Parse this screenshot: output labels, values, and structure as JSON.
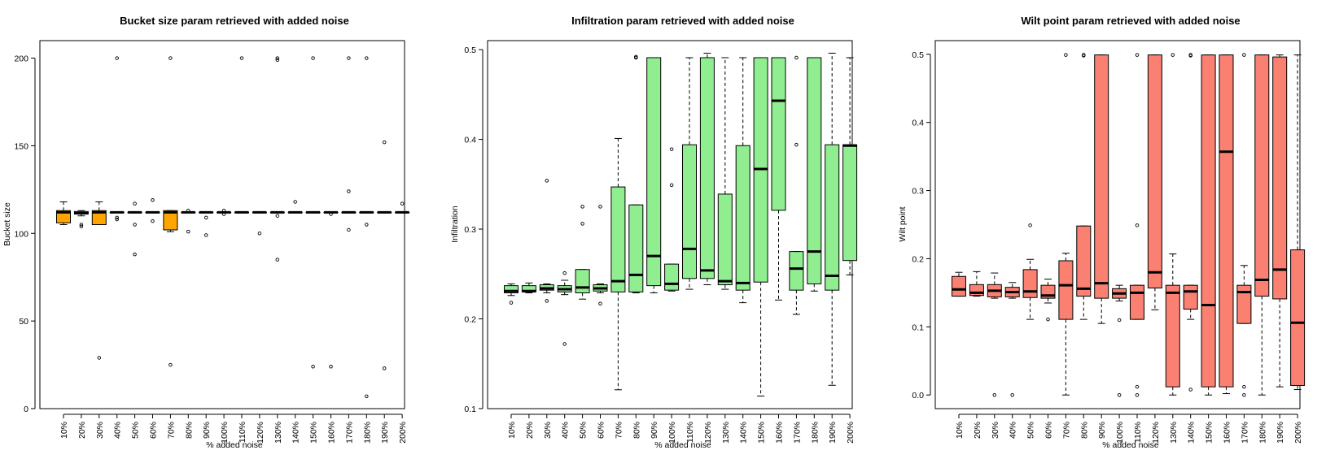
{
  "chart_data": [
    {
      "type": "boxplot",
      "title": "Bucket size param retrieved with added noise",
      "xlabel": "% added noise",
      "ylabel": "Bucket size",
      "ylim": [
        0,
        210
      ],
      "yticks": [
        0,
        50,
        100,
        150,
        200
      ],
      "box_color": "#FFA500",
      "categories": [
        "10%",
        "20%",
        "30%",
        "40%",
        "50%",
        "60%",
        "70%",
        "80%",
        "90%",
        "100%",
        "110%",
        "120%",
        "130%",
        "140%",
        "150%",
        "160%",
        "170%",
        "180%",
        "190%",
        "200%"
      ],
      "boxes": [
        {
          "whisker_low": 105,
          "q1": 106,
          "median": 112,
          "q3": 113,
          "whisker_high": 118,
          "outliers": []
        },
        {
          "whisker_low": 110,
          "q1": 111,
          "median": 111.5,
          "q3": 112.5,
          "whisker_high": 113,
          "outliers": [
            104,
            105
          ]
        },
        {
          "whisker_low": 105,
          "q1": 105,
          "median": 112,
          "q3": 113,
          "whisker_high": 118,
          "outliers": [
            29
          ]
        },
        {
          "whisker_low": 112,
          "q1": 112,
          "median": 112,
          "q3": 112,
          "whisker_high": 112,
          "outliers": [
            200,
            108,
            109
          ]
        },
        {
          "whisker_low": 112,
          "q1": 112,
          "median": 112,
          "q3": 112,
          "whisker_high": 112,
          "outliers": [
            117,
            105,
            88
          ]
        },
        {
          "whisker_low": 112,
          "q1": 112,
          "median": 112,
          "q3": 112,
          "whisker_high": 112,
          "outliers": [
            119,
            107
          ]
        },
        {
          "whisker_low": 101,
          "q1": 102,
          "median": 112,
          "q3": 113,
          "whisker_high": 113,
          "outliers": [
            200,
            25
          ]
        },
        {
          "whisker_low": 112,
          "q1": 112,
          "median": 112,
          "q3": 112,
          "whisker_high": 112,
          "outliers": [
            113,
            101
          ]
        },
        {
          "whisker_low": 112,
          "q1": 112,
          "median": 112,
          "q3": 112,
          "whisker_high": 112,
          "outliers": [
            109,
            99
          ]
        },
        {
          "whisker_low": 112,
          "q1": 112,
          "median": 112,
          "q3": 112,
          "whisker_high": 112,
          "outliers": [
            113,
            111
          ]
        },
        {
          "whisker_low": 112,
          "q1": 112,
          "median": 112,
          "q3": 112,
          "whisker_high": 112,
          "outliers": [
            200
          ]
        },
        {
          "whisker_low": 112,
          "q1": 112,
          "median": 112,
          "q3": 112,
          "whisker_high": 112,
          "outliers": [
            100
          ]
        },
        {
          "whisker_low": 112,
          "q1": 112,
          "median": 112,
          "q3": 112,
          "whisker_high": 112,
          "outliers": [
            200,
            199,
            110,
            85
          ]
        },
        {
          "whisker_low": 112,
          "q1": 112,
          "median": 112,
          "q3": 112,
          "whisker_high": 112,
          "outliers": [
            118
          ]
        },
        {
          "whisker_low": 112,
          "q1": 112,
          "median": 112,
          "q3": 112,
          "whisker_high": 112,
          "outliers": [
            200,
            24
          ]
        },
        {
          "whisker_low": 112,
          "q1": 112,
          "median": 112,
          "q3": 112,
          "whisker_high": 112,
          "outliers": [
            111,
            24
          ]
        },
        {
          "whisker_low": 112,
          "q1": 112,
          "median": 112,
          "q3": 112,
          "whisker_high": 112,
          "outliers": [
            200,
            124,
            102
          ]
        },
        {
          "whisker_low": 112,
          "q1": 112,
          "median": 112,
          "q3": 112,
          "whisker_high": 112,
          "outliers": [
            200,
            105,
            7
          ]
        },
        {
          "whisker_low": 112,
          "q1": 112,
          "median": 112,
          "q3": 112,
          "whisker_high": 112,
          "outliers": [
            152,
            23
          ]
        },
        {
          "whisker_low": 112,
          "q1": 112,
          "median": 112,
          "q3": 112,
          "whisker_high": 112,
          "outliers": [
            117
          ]
        }
      ]
    },
    {
      "type": "boxplot",
      "title": "Infiltration param retrieved with added noise",
      "xlabel": "% added noise",
      "ylabel": "Infiltration",
      "ylim": [
        0.1,
        0.51
      ],
      "yticks": [
        0.1,
        0.2,
        0.3,
        0.4,
        0.5
      ],
      "box_color": "#90EE90",
      "categories": [
        "10%",
        "20%",
        "30%",
        "40%",
        "50%",
        "60%",
        "70%",
        "80%",
        "90%",
        "100%",
        "110%",
        "120%",
        "130%",
        "140%",
        "150%",
        "160%",
        "170%",
        "180%",
        "190%",
        "200%"
      ],
      "boxes": [
        {
          "whisker_low": 0.226,
          "q1": 0.229,
          "median": 0.231,
          "q3": 0.237,
          "whisker_high": 0.239,
          "outliers": [
            0.218
          ]
        },
        {
          "whisker_low": 0.229,
          "q1": 0.23,
          "median": 0.231,
          "q3": 0.237,
          "whisker_high": 0.24,
          "outliers": []
        },
        {
          "whisker_low": 0.229,
          "q1": 0.232,
          "median": 0.234,
          "q3": 0.238,
          "whisker_high": 0.239,
          "outliers": [
            0.354,
            0.22
          ]
        },
        {
          "whisker_low": 0.227,
          "q1": 0.23,
          "median": 0.233,
          "q3": 0.237,
          "whisker_high": 0.243,
          "outliers": [
            0.251,
            0.172
          ]
        },
        {
          "whisker_low": 0.222,
          "q1": 0.229,
          "median": 0.235,
          "q3": 0.255,
          "whisker_high": 0.255,
          "outliers": [
            0.325,
            0.306
          ]
        },
        {
          "whisker_low": 0.229,
          "q1": 0.231,
          "median": 0.234,
          "q3": 0.238,
          "whisker_high": 0.239,
          "outliers": [
            0.325,
            0.217
          ]
        },
        {
          "whisker_low": 0.121,
          "q1": 0.23,
          "median": 0.242,
          "q3": 0.347,
          "whisker_high": 0.401,
          "outliers": []
        },
        {
          "whisker_low": 0.229,
          "q1": 0.23,
          "median": 0.249,
          "q3": 0.327,
          "whisker_high": 0.327,
          "outliers": [
            0.492,
            0.491
          ]
        },
        {
          "whisker_low": 0.229,
          "q1": 0.237,
          "median": 0.27,
          "q3": 0.491,
          "whisker_high": 0.491,
          "outliers": []
        },
        {
          "whisker_low": 0.231,
          "q1": 0.232,
          "median": 0.239,
          "q3": 0.261,
          "whisker_high": 0.261,
          "outliers": [
            0.389,
            0.349
          ]
        },
        {
          "whisker_low": 0.233,
          "q1": 0.245,
          "median": 0.278,
          "q3": 0.394,
          "whisker_high": 0.491,
          "outliers": []
        },
        {
          "whisker_low": 0.238,
          "q1": 0.245,
          "median": 0.254,
          "q3": 0.491,
          "whisker_high": 0.496,
          "outliers": []
        },
        {
          "whisker_low": 0.233,
          "q1": 0.238,
          "median": 0.242,
          "q3": 0.339,
          "whisker_high": 0.491,
          "outliers": []
        },
        {
          "whisker_low": 0.218,
          "q1": 0.232,
          "median": 0.24,
          "q3": 0.393,
          "whisker_high": 0.491,
          "outliers": []
        },
        {
          "whisker_low": 0.114,
          "q1": 0.241,
          "median": 0.367,
          "q3": 0.491,
          "whisker_high": 0.491,
          "outliers": []
        },
        {
          "whisker_low": 0.221,
          "q1": 0.321,
          "median": 0.443,
          "q3": 0.491,
          "whisker_high": 0.491,
          "outliers": []
        },
        {
          "whisker_low": 0.205,
          "q1": 0.232,
          "median": 0.256,
          "q3": 0.275,
          "whisker_high": 0.275,
          "outliers": [
            0.491,
            0.394
          ]
        },
        {
          "whisker_low": 0.231,
          "q1": 0.239,
          "median": 0.275,
          "q3": 0.491,
          "whisker_high": 0.491,
          "outliers": []
        },
        {
          "whisker_low": 0.126,
          "q1": 0.232,
          "median": 0.248,
          "q3": 0.394,
          "whisker_high": 0.496,
          "outliers": []
        },
        {
          "whisker_low": 0.249,
          "q1": 0.265,
          "median": 0.393,
          "q3": 0.394,
          "whisker_high": 0.491,
          "outliers": []
        }
      ]
    },
    {
      "type": "boxplot",
      "title": "Wilt point param retrieved with added noise",
      "xlabel": "% added noise",
      "ylabel": "Wilt point",
      "ylim": [
        -0.02,
        0.52
      ],
      "yticks": [
        0.0,
        0.1,
        0.2,
        0.3,
        0.4,
        0.5
      ],
      "box_color": "#FA8072",
      "categories": [
        "10%",
        "20%",
        "30%",
        "40%",
        "50%",
        "60%",
        "70%",
        "80%",
        "90%",
        "100%",
        "110%",
        "120%",
        "130%",
        "140%",
        "150%",
        "160%",
        "170%",
        "180%",
        "190%",
        "200%"
      ],
      "boxes": [
        {
          "whisker_low": 0.145,
          "q1": 0.145,
          "median": 0.155,
          "q3": 0.174,
          "whisker_high": 0.18,
          "outliers": []
        },
        {
          "whisker_low": 0.145,
          "q1": 0.146,
          "median": 0.15,
          "q3": 0.162,
          "whisker_high": 0.181,
          "outliers": []
        },
        {
          "whisker_low": 0.142,
          "q1": 0.144,
          "median": 0.153,
          "q3": 0.162,
          "whisker_high": 0.179,
          "outliers": [
            0.0
          ]
        },
        {
          "whisker_low": 0.142,
          "q1": 0.144,
          "median": 0.151,
          "q3": 0.158,
          "whisker_high": 0.165,
          "outliers": [
            0.0
          ]
        },
        {
          "whisker_low": 0.111,
          "q1": 0.143,
          "median": 0.152,
          "q3": 0.184,
          "whisker_high": 0.199,
          "outliers": [
            0.249
          ]
        },
        {
          "whisker_low": 0.135,
          "q1": 0.142,
          "median": 0.146,
          "q3": 0.161,
          "whisker_high": 0.17,
          "outliers": [
            0.111
          ]
        },
        {
          "whisker_low": 0.0,
          "q1": 0.111,
          "median": 0.161,
          "q3": 0.197,
          "whisker_high": 0.208,
          "outliers": [
            0.499
          ]
        },
        {
          "whisker_low": 0.111,
          "q1": 0.145,
          "median": 0.156,
          "q3": 0.248,
          "whisker_high": 0.248,
          "outliers": [
            0.499,
            0.498
          ]
        },
        {
          "whisker_low": 0.105,
          "q1": 0.142,
          "median": 0.164,
          "q3": 0.499,
          "whisker_high": 0.499,
          "outliers": []
        },
        {
          "whisker_low": 0.138,
          "q1": 0.142,
          "median": 0.149,
          "q3": 0.156,
          "whisker_high": 0.161,
          "outliers": [
            0.11,
            0.0
          ]
        },
        {
          "whisker_low": 0.111,
          "q1": 0.111,
          "median": 0.15,
          "q3": 0.161,
          "whisker_high": 0.161,
          "outliers": [
            0.499,
            0.249,
            0.012,
            0.0
          ]
        },
        {
          "whisker_low": 0.125,
          "q1": 0.157,
          "median": 0.18,
          "q3": 0.499,
          "whisker_high": 0.499,
          "outliers": []
        },
        {
          "whisker_low": 0.0,
          "q1": 0.012,
          "median": 0.15,
          "q3": 0.161,
          "whisker_high": 0.207,
          "outliers": [
            0.499
          ]
        },
        {
          "whisker_low": 0.111,
          "q1": 0.126,
          "median": 0.152,
          "q3": 0.161,
          "whisker_high": 0.161,
          "outliers": [
            0.499,
            0.498,
            0.008
          ]
        },
        {
          "whisker_low": 0.0,
          "q1": 0.012,
          "median": 0.132,
          "q3": 0.499,
          "whisker_high": 0.499,
          "outliers": []
        },
        {
          "whisker_low": 0.002,
          "q1": 0.012,
          "median": 0.357,
          "q3": 0.499,
          "whisker_high": 0.499,
          "outliers": []
        },
        {
          "whisker_low": 0.105,
          "q1": 0.105,
          "median": 0.151,
          "q3": 0.161,
          "whisker_high": 0.19,
          "outliers": [
            0.499,
            0.012,
            0.0
          ]
        },
        {
          "whisker_low": 0.0,
          "q1": 0.145,
          "median": 0.169,
          "q3": 0.499,
          "whisker_high": 0.499,
          "outliers": []
        },
        {
          "whisker_low": 0.012,
          "q1": 0.141,
          "median": 0.184,
          "q3": 0.496,
          "whisker_high": 0.499,
          "outliers": []
        },
        {
          "whisker_low": 0.008,
          "q1": 0.014,
          "median": 0.106,
          "q3": 0.213,
          "whisker_high": 0.499,
          "outliers": []
        }
      ]
    }
  ]
}
